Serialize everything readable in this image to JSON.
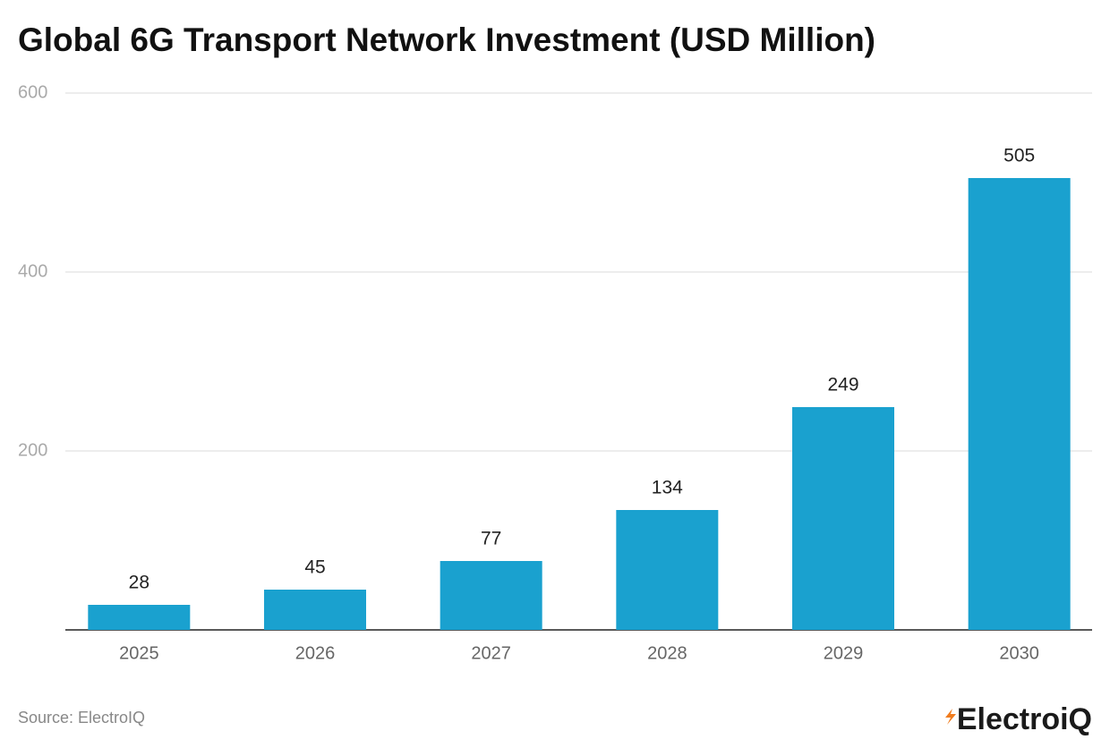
{
  "chart_data": {
    "type": "bar",
    "title": "Global 6G Transport Network Investment (USD Million)",
    "categories": [
      "2025",
      "2026",
      "2027",
      "2028",
      "2029",
      "2030"
    ],
    "values": [
      28,
      45,
      77,
      134,
      249,
      505
    ],
    "color": "#1aa1cf",
    "ylim": [
      0,
      600
    ],
    "yticks": [
      200,
      400,
      600
    ],
    "grid": true,
    "source": "Source: ElectroIQ",
    "logo": "ElectroiQ"
  }
}
